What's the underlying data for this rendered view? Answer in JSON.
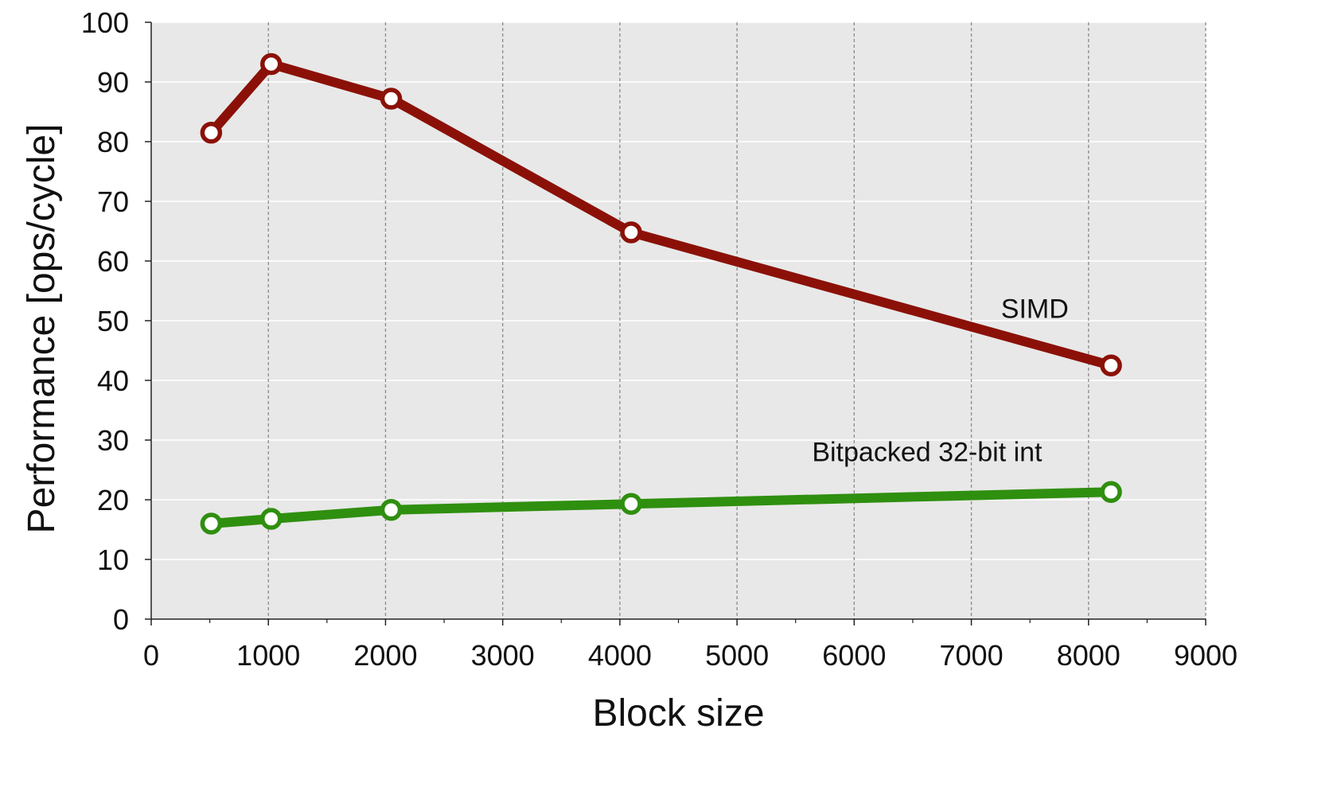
{
  "chart_data": {
    "type": "line",
    "title": "",
    "xlabel": "Block size",
    "ylabel": "Performance [ops/cycle]",
    "xlim": [
      0,
      9000
    ],
    "ylim": [
      0,
      100
    ],
    "xticks": [
      0,
      1000,
      2000,
      3000,
      4000,
      5000,
      6000,
      7000,
      8000,
      9000
    ],
    "yticks": [
      0,
      10,
      20,
      30,
      40,
      50,
      60,
      70,
      80,
      90,
      100
    ],
    "grid": true,
    "background": "#e8e8e8",
    "series": [
      {
        "name": "SIMD",
        "color": "#8b1108",
        "x": [
          512,
          1024,
          2048,
          4096,
          8192
        ],
        "y": [
          81.5,
          93,
          87.2,
          64.8,
          42.5
        ]
      },
      {
        "name": "Bitpacked 32-bit int",
        "color": "#2f8f0f",
        "x": [
          512,
          1024,
          2048,
          4096,
          8192
        ],
        "y": [
          16,
          16.8,
          18.3,
          19.3,
          21.3
        ]
      }
    ]
  }
}
